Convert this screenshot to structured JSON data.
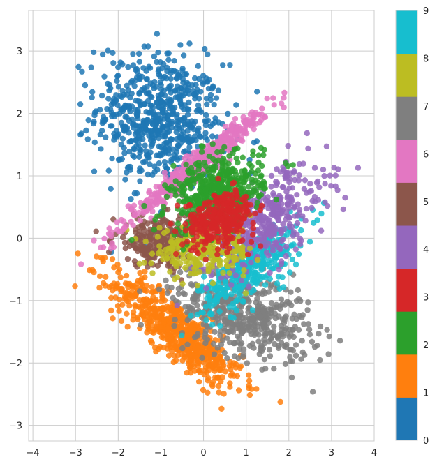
{
  "chart_data": {
    "type": "scatter",
    "title": "",
    "xlabel": "",
    "ylabel": "",
    "xlim": [
      -4.1,
      4.0
    ],
    "ylim": [
      -3.25,
      3.65
    ],
    "x_ticks": [
      -4,
      -3,
      -2,
      -1,
      0,
      1,
      2,
      3,
      4
    ],
    "x_tick_labels": [
      "−4",
      "−3",
      "−2",
      "−1",
      "0",
      "1",
      "2",
      "3",
      "4"
    ],
    "y_ticks": [
      -3,
      -2,
      -1,
      0,
      1,
      2,
      3
    ],
    "y_tick_labels": [
      "−3",
      "−2",
      "−1",
      "0",
      "1",
      "2",
      "3"
    ],
    "grid": true,
    "colorbar": {
      "position": "right",
      "range": [
        0,
        9
      ],
      "ticks": [
        "0",
        "1",
        "2",
        "3",
        "4",
        "5",
        "6",
        "7",
        "8",
        "9"
      ],
      "colors": [
        "#1f77b4",
        "#ff7f0e",
        "#2ca02c",
        "#d62728",
        "#9467bd",
        "#8c564b",
        "#e377c2",
        "#7f7f7f",
        "#bcbd22",
        "#17becf"
      ]
    },
    "clusters": [
      {
        "label": 0,
        "center": [
          -1.0,
          1.9
        ],
        "spread": [
          0.75,
          0.55
        ],
        "corr": -0.2,
        "n": 650
      },
      {
        "label": 1,
        "center": [
          -0.6,
          -1.5
        ],
        "spread": [
          0.75,
          0.45
        ],
        "corr": -0.85,
        "n": 650
      },
      {
        "label": 2,
        "center": [
          0.3,
          0.75
        ],
        "spread": [
          0.55,
          0.3
        ],
        "corr": 0.3,
        "n": 450
      },
      {
        "label": 3,
        "center": [
          0.4,
          0.3
        ],
        "spread": [
          0.4,
          0.22
        ],
        "corr": 0.2,
        "n": 320
      },
      {
        "label": 4,
        "center": [
          1.5,
          0.3
        ],
        "spread": [
          0.7,
          0.45
        ],
        "corr": 0.6,
        "n": 380
      },
      {
        "label": 5,
        "center": [
          -1.0,
          -0.05
        ],
        "spread": [
          0.55,
          0.2
        ],
        "corr": 0.0,
        "n": 260
      },
      {
        "label": 6,
        "center": [
          -0.2,
          1.15
        ],
        "spread": [
          0.8,
          0.25
        ],
        "corr": 0.92,
        "n": 520
      },
      {
        "label": 7,
        "center": [
          0.9,
          -1.2
        ],
        "spread": [
          0.8,
          0.35
        ],
        "corr": -0.3,
        "n": 520
      },
      {
        "label": 8,
        "center": [
          0.0,
          -0.2
        ],
        "spread": [
          0.6,
          0.2
        ],
        "corr": 0.0,
        "n": 260
      },
      {
        "label": 9,
        "center": [
          1.1,
          -0.45
        ],
        "spread": [
          0.6,
          0.35
        ],
        "corr": 0.7,
        "n": 360
      }
    ]
  }
}
